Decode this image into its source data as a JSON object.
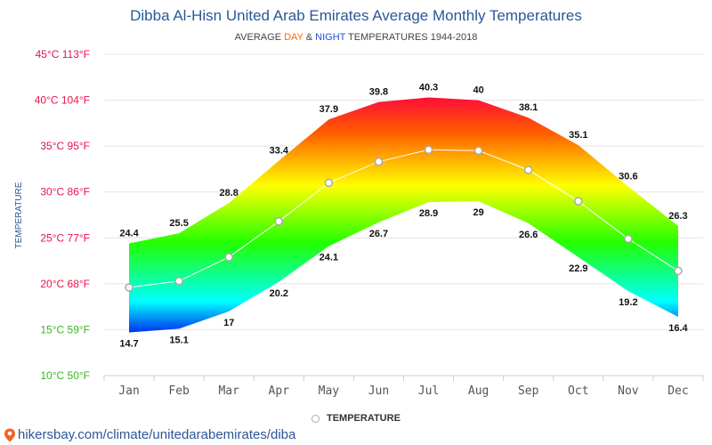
{
  "header": {
    "title": "Dibba Al-Hisn United Arab Emirates Average Monthly Temperatures",
    "subtitle_prefix": "AVERAGE ",
    "subtitle_day": "DAY",
    "subtitle_amp": " & ",
    "subtitle_night": "NIGHT",
    "subtitle_suffix": " TEMPERATURES 1944-2018"
  },
  "legend": {
    "label": "TEMPERATURE"
  },
  "source": {
    "text": "hikersbay.com/climate/unitedarabemirates/diba"
  },
  "colors": {
    "title": "#2b5797",
    "day": "#ff6a00",
    "night": "#1f4fd8"
  },
  "chart_data": {
    "type": "area",
    "categories": [
      "Jan",
      "Feb",
      "Mar",
      "Apr",
      "May",
      "Jun",
      "Jul",
      "Aug",
      "Sep",
      "Oct",
      "Nov",
      "Dec"
    ],
    "series": [
      {
        "name": "",
        "values": [
          24.4,
          25.5,
          28.8,
          33.4,
          37.9,
          39.8,
          40.3,
          40,
          38.1,
          35.1,
          30.6,
          26.3
        ]
      },
      {
        "name": "",
        "values": [
          14.7,
          15.1,
          17,
          20.2,
          24.1,
          26.7,
          28.9,
          29,
          26.6,
          22.9,
          19.2,
          16.4
        ]
      },
      {
        "name": "TEMPERATURE",
        "values": [
          19.6,
          20.3,
          22.9,
          26.8,
          31.0,
          33.3,
          34.6,
          34.5,
          32.4,
          29.0,
          24.9,
          21.4
        ]
      }
    ],
    "ylabel": "TEMPERATURE",
    "ylim": [
      10,
      45
    ],
    "yticks": [
      {
        "value": 45,
        "label": "45°C 113°F",
        "color": "#e8124c"
      },
      {
        "value": 40,
        "label": "40°C 104°F",
        "color": "#e8124c"
      },
      {
        "value": 35,
        "label": "35°C 95°F",
        "color": "#e8124c"
      },
      {
        "value": 30,
        "label": "30°C 86°F",
        "color": "#e8124c"
      },
      {
        "value": 25,
        "label": "25°C 77°F",
        "color": "#e8124c"
      },
      {
        "value": 20,
        "label": "20°C 68°F",
        "color": "#e8124c"
      },
      {
        "value": 15,
        "label": "15°C 59°F",
        "color": "#3cb521"
      },
      {
        "value": 10,
        "label": "10°C 50°F",
        "color": "#3cb521"
      }
    ],
    "grid": true,
    "legend_position": "bottom"
  }
}
